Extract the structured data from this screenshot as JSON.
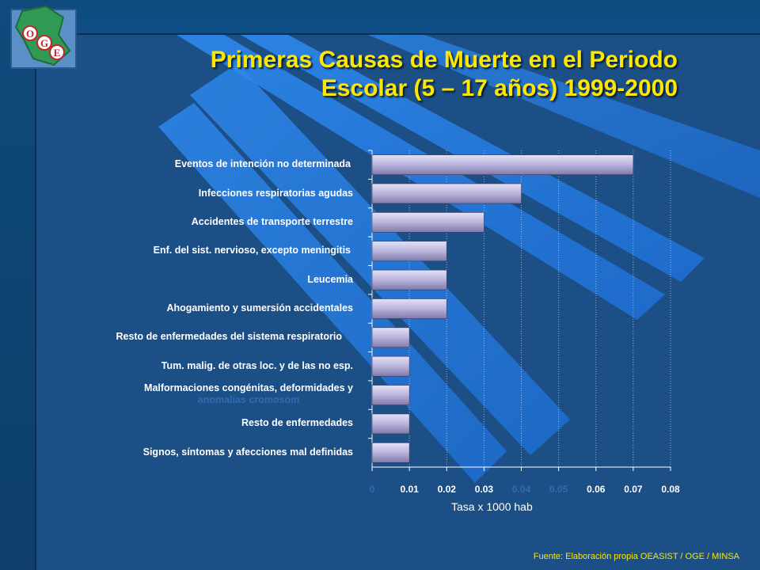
{
  "title_line1": "Primeras Causas de Muerte  en el Periodo",
  "title_line2": "Escolar (5 – 17 años) 1999-2000",
  "logo_text": "OGE",
  "chart_data": {
    "type": "bar",
    "orientation": "horizontal",
    "categories": [
      "Eventos de intención no determinada",
      "Infecciones respiratorias agudas",
      "Accidentes de transporte terrestre",
      "Enf. del sist. nervioso, excepto meningitis",
      "Leucemia",
      "Ahogamiento y sumersión accidentales",
      "Resto de enfermedades del sistema respiratorio",
      "Tum. malig. de otras loc. y de las no esp.",
      "Malformaciones congénitas, deformidades y anomalías cromosóm",
      "Resto de enfermedades",
      "Signos, síntomas y afecciones mal definidas"
    ],
    "values": [
      0.07,
      0.04,
      0.03,
      0.02,
      0.02,
      0.02,
      0.01,
      0.01,
      0.01,
      0.01,
      0.01
    ],
    "xlabel": "Tasa x 1000 hab",
    "ylabel": "",
    "xlim": [
      0,
      0.08
    ],
    "xticks": [
      "0",
      "0.01",
      "0.02",
      "0.03",
      "0.04",
      "0.05",
      "0.06",
      "0.07",
      "0.08"
    ],
    "grid": true,
    "bar_color": "#b8b4dc"
  },
  "source": "Fuente: Elaboración propia OEASIST / OGE / MINSA"
}
